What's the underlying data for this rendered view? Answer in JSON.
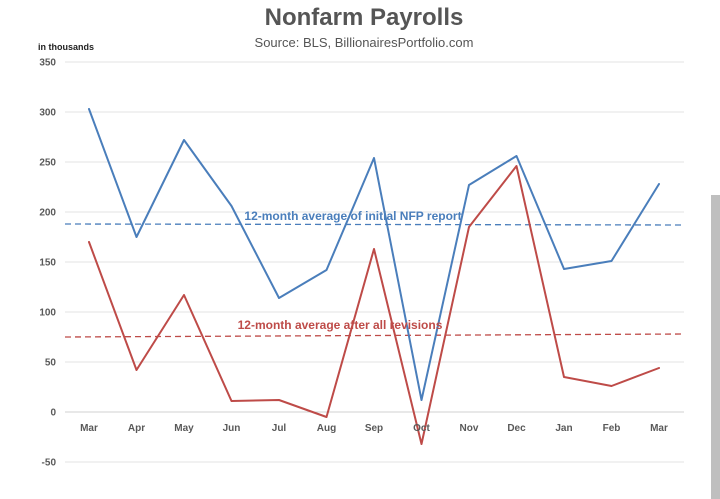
{
  "chart_data": {
    "type": "line",
    "title": "Nonfarm Payrolls",
    "subtitle": "Source: BLS, BillionairesPortfolio.com",
    "ylabel": "in thousands",
    "xlabel": "",
    "categories": [
      "Mar",
      "Apr",
      "May",
      "Jun",
      "Jul",
      "Aug",
      "Sep",
      "Oct",
      "Nov",
      "Dec",
      "Jan",
      "Feb",
      "Mar"
    ],
    "ylim": [
      -50,
      350
    ],
    "yticks": [
      350,
      300,
      250,
      200,
      150,
      100,
      50,
      0,
      -50
    ],
    "grid": true,
    "series": [
      {
        "values": [
          303,
          175,
          272,
          206,
          114,
          142,
          254,
          12,
          227,
          256,
          143,
          151,
          228
        ],
        "color": "#4a7ebb"
      },
      {
        "values": [
          170,
          42,
          117,
          11,
          12,
          -5,
          163,
          -32,
          185,
          246,
          35,
          26,
          44
        ],
        "color": "#be4b48"
      }
    ],
    "annotations": [
      {
        "text": "12-month average of initial NFP report",
        "y_start": 188,
        "y_end": 187,
        "color": "#4a7ebb"
      },
      {
        "text": "12-month average after all revisions",
        "y_start": 75,
        "y_end": 78,
        "color": "#be4b48"
      }
    ]
  }
}
